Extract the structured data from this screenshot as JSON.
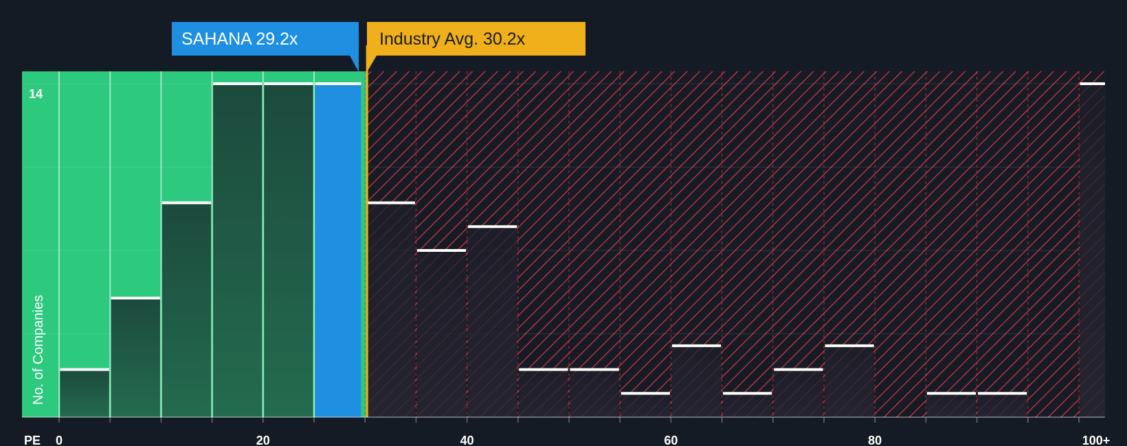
{
  "chart_data": {
    "type": "bar",
    "xlabel": "PE",
    "ylabel": "No. of Companies",
    "ylim": [
      0,
      14
    ],
    "xlim": [
      -5,
      103
    ],
    "x_ticks": [
      {
        "value": 0,
        "label": "0"
      },
      {
        "value": 20,
        "label": "20"
      },
      {
        "value": 40,
        "label": "40"
      },
      {
        "value": 60,
        "label": "60"
      },
      {
        "value": 80,
        "label": "80"
      },
      {
        "value": 100,
        "label": "100+"
      }
    ],
    "y_max_label": "14",
    "bin_width": 5,
    "bins": [
      {
        "start": 0,
        "count": 2
      },
      {
        "start": 5,
        "count": 5
      },
      {
        "start": 10,
        "count": 9
      },
      {
        "start": 15,
        "count": 14
      },
      {
        "start": 20,
        "count": 14
      },
      {
        "start": 25,
        "count": 14,
        "highlight": true
      },
      {
        "start": 30,
        "count": 9
      },
      {
        "start": 35,
        "count": 7
      },
      {
        "start": 40,
        "count": 8
      },
      {
        "start": 45,
        "count": 2
      },
      {
        "start": 50,
        "count": 2
      },
      {
        "start": 55,
        "count": 1
      },
      {
        "start": 60,
        "count": 3
      },
      {
        "start": 65,
        "count": 1
      },
      {
        "start": 70,
        "count": 2
      },
      {
        "start": 75,
        "count": 3
      },
      {
        "start": 80,
        "count": 0
      },
      {
        "start": 85,
        "count": 1
      },
      {
        "start": 90,
        "count": 1
      },
      {
        "start": 95,
        "count": 0
      },
      {
        "start": 100,
        "count": 14
      }
    ],
    "company": {
      "name": "SAHANA",
      "value": 29.2,
      "label": "SAHANA 29.2x"
    },
    "industry": {
      "value": 30.2,
      "label": "Industry Avg. 30.2x"
    }
  },
  "colors": {
    "background": "#151b24",
    "good_zone": "#2dc97e",
    "bar_in_good": "#1e5b45",
    "highlight_bar": "#1e8fe1",
    "bad_hatch": "#d63b46",
    "bar_in_bad": "#231f2b",
    "bar_cap": "#ffffff",
    "industry_line": "#f0b01c",
    "company_tag": "#1e8fe1",
    "industry_tag": "#f0b01c"
  }
}
